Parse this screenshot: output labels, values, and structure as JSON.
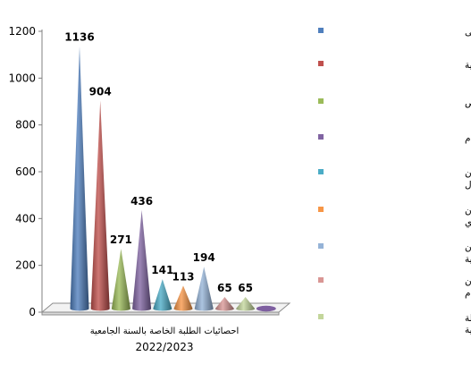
{
  "chart_data": {
    "type": "bar",
    "bar_shape": "cone",
    "view": "3d",
    "ylim": [
      0,
      1200
    ],
    "yticks": [
      0,
      200,
      400,
      600,
      800,
      1000,
      1200
    ],
    "grid": false,
    "legend_position": "right",
    "category_label": "احصائيات الطلبة الخاصة بالسنة الجامعية",
    "category_label_line2": "2022/2023",
    "series": [
      {
        "name": "ليسانس سنة الاولى",
        "value": 1136,
        "color": "#4F7FBD",
        "label": "1136"
      },
      {
        "name": "ليسانس سنة ثانية",
        "value": 904,
        "color": "#C0504D",
        "label": "904"
      },
      {
        "name": "السنة الثالثة خاص",
        "value": 271,
        "color": "#9BBB59",
        "label": "271"
      },
      {
        "name": "السنة الثالثة عام",
        "value": 436,
        "color": "#8064A2",
        "label": "436"
      },
      {
        "name": "السنة اولى ماستر  قانون اعمال",
        "value": 141,
        "color": "#4BACC6",
        "label": "141"
      },
      {
        "name": "السنة اولى ماستر  قانون عقاري",
        "value": 113,
        "color": "#F79646",
        "label": "113"
      },
      {
        "name": "السنة اولى ماستر  قانون جنائي  و العلوم الجنائية",
        "value": 194,
        "color": "#95B3D7",
        "label": "194"
      },
      {
        "name": "السنة اولى ماستر   قانون اقتصادي عام",
        "value": 65,
        "color": "#D99694",
        "label": "65"
      },
      {
        "name": "السنة اولى ماستر  قانون دولة و مؤسسات عمومية",
        "value": 65,
        "color": "#C3D69B",
        "label": "65"
      },
      {
        "name": "",
        "value": 0,
        "color": "#7E5FA0",
        "label": ""
      }
    ],
    "legend": [
      {
        "text": "ليسانس سنة الاولى",
        "color": "#4F7FBD"
      },
      {
        "text": "ليسانس سنة ثانية",
        "color": "#C0504D"
      },
      {
        "text": "السنة الثالثة خاص",
        "color": "#9BBB59"
      },
      {
        "text": "السنة الثالثة عام",
        "color": "#8064A2"
      },
      {
        "text": "السنة اولى ماستر  قانون اعمال",
        "color": "#4BACC6"
      },
      {
        "text": "السنة اولى ماستر  قانون عقاري",
        "color": "#F79646"
      },
      {
        "text": "السنة اولى ماستر  قانون جنائي  و العلوم الجنائية",
        "color": "#95B3D7"
      },
      {
        "text": "السنة اولى ماستر   قانون اقتصادي عام",
        "color": "#D99694"
      },
      {
        "text": "السنة اولى ماستر  قانون دولة و مؤسسات عمومية",
        "color": "#C3D69B"
      }
    ]
  }
}
